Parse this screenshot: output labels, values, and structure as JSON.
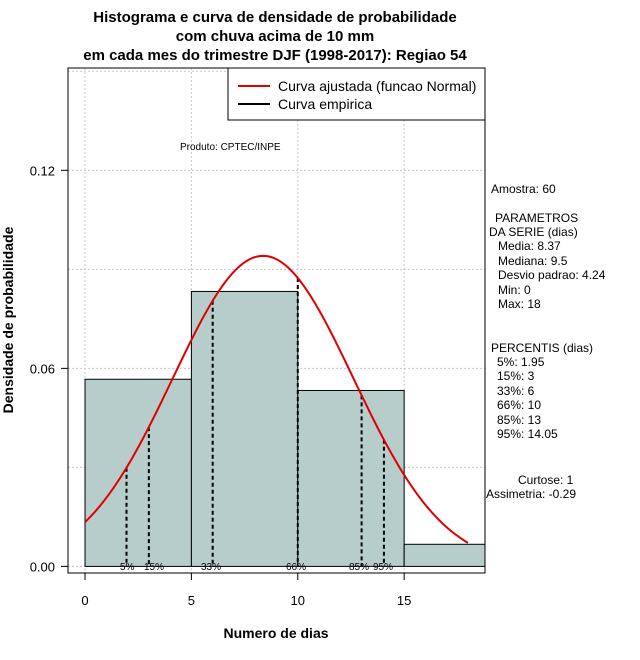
{
  "chart_data": {
    "type": "bar",
    "title_lines": [
      "Histograma e curva de densidade de probabilidade",
      "com chuva acima de 10 mm",
      "em cada mes do trimestre DJF (1998-2017): Regiao 54"
    ],
    "xlabel": "Numero de dias",
    "ylabel": "Densidade de probabilidade",
    "xlim": [
      -0.8,
      18.8
    ],
    "ylim": [
      -0.002,
      0.151
    ],
    "x_ticks": [
      0,
      5,
      10,
      15
    ],
    "x_tick_labels": [
      "0",
      "5",
      "10",
      "15"
    ],
    "y_ticks": [
      0.0,
      0.06,
      0.12
    ],
    "y_tick_labels": [
      "0.00",
      "0.06",
      "0.12"
    ],
    "grid_x": [
      0,
      5,
      10,
      15
    ],
    "grid_y": [
      0.0,
      0.03,
      0.06,
      0.09,
      0.12,
      0.15
    ],
    "bins": [
      {
        "start": 0,
        "end": 5,
        "density": 0.0567
      },
      {
        "start": 5,
        "end": 10,
        "density": 0.0833
      },
      {
        "start": 10,
        "end": 15,
        "density": 0.0533
      },
      {
        "start": 15,
        "end": 18.8,
        "density": 0.0067
      }
    ],
    "bar_color": "#b6cdcc",
    "fitted_curve": {
      "name": "Curva ajustada (funcao Normal)",
      "mean": 8.37,
      "sd": 4.24,
      "x_range": [
        0,
        18
      ],
      "color": "#e00000"
    },
    "empirical_curve": {
      "name": "Curva empirica",
      "color": "#000000"
    },
    "percentile_lines": [
      {
        "label": "5%",
        "x": 1.95
      },
      {
        "label": "15%",
        "x": 3
      },
      {
        "label": "33%",
        "x": 6
      },
      {
        "label": "66%",
        "x": 10
      },
      {
        "label": "85%",
        "x": 13
      },
      {
        "label": "95%",
        "x": 14.05
      }
    ],
    "product_label": "Produto: CPTEC/INPE",
    "legend_position": "top-right"
  },
  "stats": {
    "amostra": "Amostra: 60",
    "parametros_title_1": "PARAMETROS",
    "parametros_title_2": "DA SERIE (dias)",
    "media": "Media: 8.37",
    "mediana": "Mediana: 9.5",
    "desvio": "Desvio padrao: 4.24",
    "min": "Min: 0",
    "max": "Max: 18",
    "percentis_title": "PERCENTIS (dias)",
    "p5": "5%: 1.95",
    "p15": "15%: 3",
    "p33": "33%: 6",
    "p66": "66%: 10",
    "p85": "85%: 13",
    "p95": "95%: 14.05",
    "curtose": "Curtose: 1",
    "assimetria": "Assimetria: -0.29"
  }
}
